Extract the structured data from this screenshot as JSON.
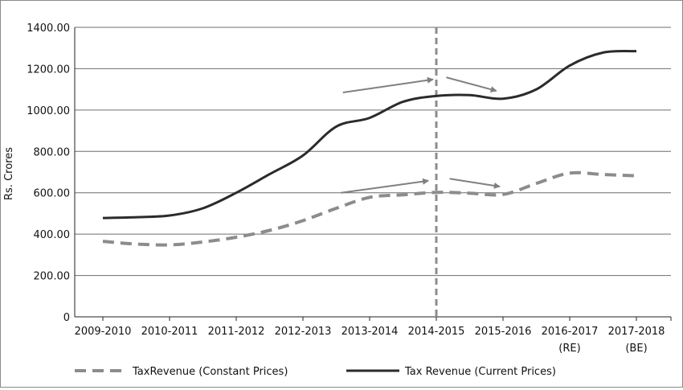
{
  "chart_data": {
    "type": "line",
    "title": "",
    "xlabel": "",
    "ylabel": "Rs. Crores",
    "ylim": [
      0,
      1400
    ],
    "yticks": [
      "0",
      "200.00",
      "400.00",
      "600.00",
      "800.00",
      "1000.00",
      "1200.00",
      "1400.00"
    ],
    "ytick_values": [
      0,
      200,
      400,
      600,
      800,
      1000,
      1200,
      1400
    ],
    "grid": true,
    "legend_position": "bottom",
    "categories": [
      {
        "label": "2009-2010",
        "sub": ""
      },
      {
        "label": "2010-2011",
        "sub": ""
      },
      {
        "label": "2011-2012",
        "sub": ""
      },
      {
        "label": "2012-2013",
        "sub": ""
      },
      {
        "label": "2013-2014",
        "sub": ""
      },
      {
        "label": "2014-2015",
        "sub": ""
      },
      {
        "label": "2015-2016",
        "sub": ""
      },
      {
        "label": "2016-2017",
        "sub": "(RE)"
      },
      {
        "label": "2017-2018",
        "sub": "(BE)"
      }
    ],
    "series": [
      {
        "name": "TaxRevenue (Constant Prices)",
        "style": "dashed",
        "color": "#8c8c8c",
        "x": [
          0,
          0.5,
          1,
          1.5,
          2,
          2.5,
          3,
          3.5,
          4,
          4.5,
          5,
          5.5,
          6,
          6.5,
          7,
          7.5,
          8
        ],
        "values": [
          365,
          352,
          348,
          362,
          385,
          418,
          465,
          525,
          578,
          590,
          602,
          598,
          592,
          645,
          695,
          688,
          682
        ]
      },
      {
        "name": "Tax Revenue (Current Prices)",
        "style": "solid",
        "color": "#2b2b2b",
        "x": [
          0,
          0.5,
          1,
          1.5,
          2,
          2.5,
          3,
          3.5,
          4,
          4.5,
          5,
          5.5,
          6,
          6.5,
          7,
          7.5,
          8
        ],
        "values": [
          478,
          482,
          490,
          525,
          600,
          690,
          780,
          920,
          962,
          1040,
          1068,
          1072,
          1055,
          1100,
          1215,
          1278,
          1285
        ]
      }
    ],
    "divider": {
      "style": "dashed",
      "color": "#8c8c8c",
      "x_category": "2014-2015"
    },
    "annotations": [
      {
        "type": "arrow",
        "from": [
          3.6,
          1085
        ],
        "to": [
          4.95,
          1148
        ]
      },
      {
        "type": "arrow",
        "from": [
          5.15,
          1158
        ],
        "to": [
          5.9,
          1093
        ]
      },
      {
        "type": "arrow",
        "from": [
          3.57,
          600
        ],
        "to": [
          4.88,
          658
        ]
      },
      {
        "type": "arrow",
        "from": [
          5.2,
          668
        ],
        "to": [
          5.95,
          630
        ]
      }
    ],
    "annotation_color": "#808080"
  }
}
